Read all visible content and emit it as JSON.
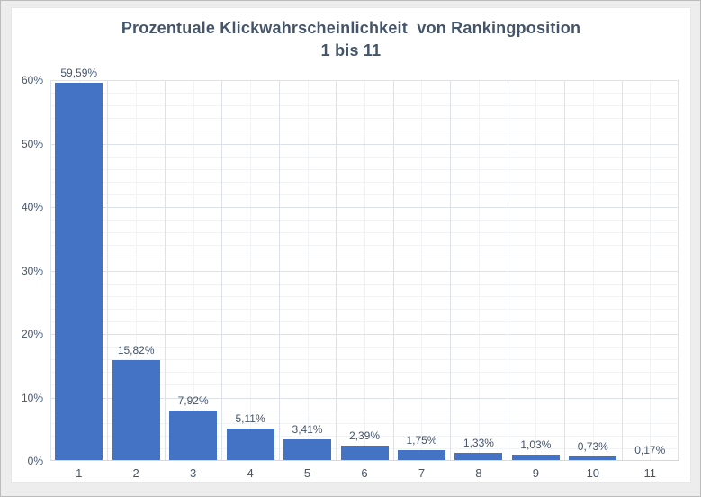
{
  "chart_data": {
    "type": "bar",
    "title_line1": "Prozentuale Klickwahrscheinlichkeit  von Rankingposition",
    "title_line2": "1 bis 11",
    "categories": [
      "1",
      "2",
      "3",
      "4",
      "5",
      "6",
      "7",
      "8",
      "9",
      "10",
      "11"
    ],
    "values": [
      59.59,
      15.82,
      7.92,
      5.11,
      3.41,
      2.39,
      1.75,
      1.33,
      1.03,
      0.73,
      0.17
    ],
    "data_labels": [
      "59,59%",
      "15,82%",
      "7,92%",
      "5,11%",
      "3,41%",
      "2,39%",
      "1,75%",
      "1,33%",
      "1,03%",
      "0,73%",
      "0,17%"
    ],
    "xlabel": "",
    "ylabel": "",
    "y_tick_labels": [
      "0%",
      "10%",
      "20%",
      "30%",
      "40%",
      "50%",
      "60%"
    ],
    "ylim": [
      0,
      60
    ],
    "y_major_unit": 10,
    "y_minor_unit": 2,
    "grid": "major-and-minor-horizontal-and-vertical",
    "legend": "none",
    "colors": {
      "bar_fill": "#4472C4",
      "title_text": "#44546A",
      "axis_text": "#44546A",
      "data_label_text": "#44546A",
      "gridline_major": "#dde1e9",
      "gridline_minor": "#f1f3f7",
      "axis_line": "#d3d8e0",
      "chart_background": "#ffffff",
      "window_margin": "#ededed"
    }
  }
}
